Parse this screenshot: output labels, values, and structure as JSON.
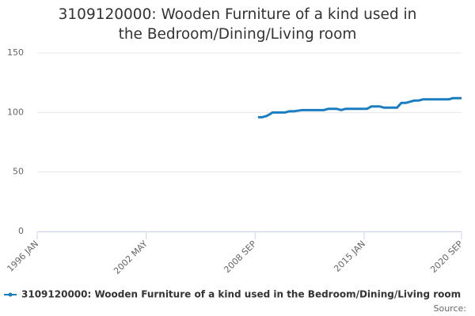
{
  "chart_data": {
    "type": "line",
    "title": "3109120000: Wooden Furniture of a kind used in the Bedroom/Dining/Living room",
    "x": [
      "2008-11",
      "2009-02",
      "2009-05",
      "2009-08",
      "2009-09",
      "2009-12",
      "2010-03",
      "2010-06",
      "2010-09",
      "2010-12",
      "2011-03",
      "2011-06",
      "2011-09",
      "2011-12",
      "2012-03",
      "2012-06",
      "2012-09",
      "2012-12",
      "2013-03",
      "2013-06",
      "2013-09",
      "2013-12",
      "2014-03",
      "2014-06",
      "2014-09",
      "2014-12",
      "2015-03",
      "2015-06",
      "2015-09",
      "2015-12",
      "2016-03",
      "2016-06",
      "2016-09",
      "2016-12",
      "2017-03",
      "2017-06",
      "2017-09",
      "2017-12",
      "2018-03",
      "2018-06",
      "2018-09",
      "2018-12",
      "2019-03",
      "2019-06",
      "2019-09",
      "2019-12",
      "2020-03",
      "2020-06",
      "2020-09"
    ],
    "series": [
      {
        "name": "3109120000: Wooden Furniture of a kind used in the Bedroom/Dining/Living room",
        "color": "#1a7dc0",
        "values": [
          96,
          96,
          97,
          99,
          100,
          100,
          100,
          100,
          101,
          101,
          101.5,
          102,
          102,
          102,
          102,
          102,
          102,
          103,
          103,
          103,
          102,
          103,
          103,
          103,
          103,
          103,
          103,
          105,
          105,
          105,
          104,
          104,
          104,
          104,
          108,
          108,
          109,
          110,
          110,
          111,
          111,
          111,
          111,
          111,
          111,
          111,
          112,
          112,
          112
        ]
      }
    ],
    "xlim": [
      "1996-01",
      "2020-09"
    ],
    "xticks": [
      {
        "value": "1996-01",
        "label": "1996 JAN"
      },
      {
        "value": "2002-05",
        "label": "2002 MAY"
      },
      {
        "value": "2008-09",
        "label": "2008 SEP"
      },
      {
        "value": "2015-01",
        "label": "2015 JAN"
      },
      {
        "value": "2020-09",
        "label": "2020 SEP"
      }
    ],
    "ylim": [
      0,
      150
    ],
    "yticks": [
      0,
      50,
      100,
      150
    ],
    "grid": true,
    "source": "Source:"
  }
}
